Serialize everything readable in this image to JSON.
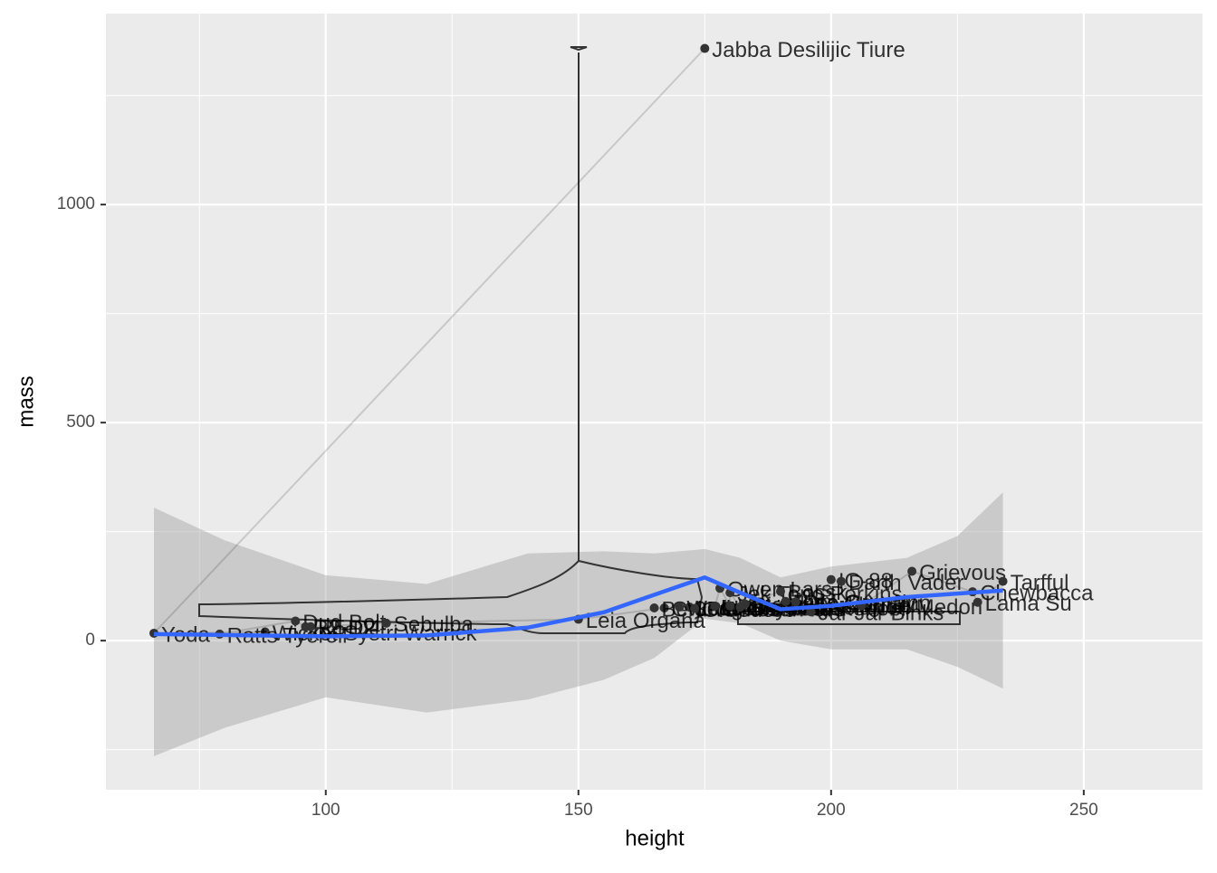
{
  "chart_data": {
    "type": "scatter",
    "x_label": "height",
    "y_label": "mass",
    "xlim": [
      56.5,
      273.5
    ],
    "ylim": [
      -342,
      1438
    ],
    "xticks": [
      100,
      150,
      200,
      250
    ],
    "yticks": [
      0,
      500,
      1000
    ],
    "x_minor_grid": [
      75,
      125,
      175,
      225
    ],
    "y_minor_grid": [
      -250,
      250,
      750,
      1250
    ],
    "grid": true,
    "color": "#333333",
    "x": [
      175,
      66,
      88,
      79,
      94,
      96,
      97,
      112,
      150,
      167,
      172,
      165,
      170,
      173,
      177,
      178,
      180,
      180,
      182,
      183,
      190,
      191,
      193,
      196,
      200,
      202,
      206,
      216,
      228,
      229,
      234
    ],
    "values": [
      1358,
      17,
      20,
      15,
      45,
      32,
      32,
      40,
      49,
      75,
      77,
      75,
      77,
      74,
      79,
      120,
      80,
      110,
      77,
      84,
      113,
      90,
      89,
      66,
      140,
      136,
      80,
      159,
      112,
      88,
      136
    ],
    "point_labels": [
      "Jabba Desilijic Tiure",
      "Yoda",
      "Wicket Systri Warrick",
      "Ratts Tyerell",
      "Dud Bolt",
      "R2-D2",
      "R5-D4",
      "Sebulba",
      "Leia Organa",
      "C-3PO",
      "Luke Skywalker",
      "Beru Whitesun lars",
      "Wedge Antilles",
      "Greedo",
      "Lando Calrissian",
      "Owen Lars",
      "Han Solo",
      "Jek Tono Porkins",
      "Obi-Wan Kenobi",
      "Biggs Darklighter",
      "Bossk",
      "Nute Gunray",
      "Qui-Gon Jinn",
      "Jar Jar Binks",
      "IG-88",
      "Darth Vader",
      "Tion Medon",
      "Grievous",
      "Chewbacca",
      "Lama Su",
      "Tarfful"
    ],
    "smooth": {
      "color": "#3366ff",
      "x": [
        66,
        80,
        100,
        120,
        140,
        155,
        165,
        175,
        182,
        190,
        200,
        215,
        225,
        234
      ],
      "values": [
        15,
        13,
        10,
        12,
        30,
        65,
        105,
        145,
        110,
        72,
        80,
        100,
        108,
        115
      ],
      "lower": [
        -265,
        -200,
        -130,
        -165,
        -135,
        -90,
        -40,
        50,
        40,
        0,
        -20,
        -20,
        -60,
        -110
      ],
      "upper": [
        305,
        230,
        150,
        130,
        200,
        205,
        200,
        210,
        190,
        145,
        170,
        190,
        240,
        340
      ]
    }
  }
}
